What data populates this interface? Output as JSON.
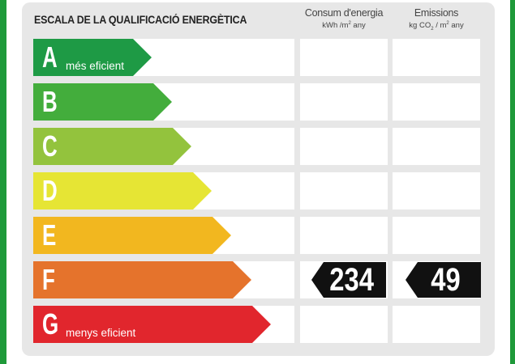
{
  "title": "ESCALA DE LA QUALIFICACIÓ ENERGÈTICA",
  "columns": {
    "consum": {
      "label": "Consum d'energia",
      "unit_base": "kWh /m",
      "unit_exp": "2",
      "unit_tail": "  any"
    },
    "emissions": {
      "label": "Emissions",
      "unit_a": "kg CO",
      "unit_sub": "2",
      "unit_b": " / m",
      "unit_exp": "2",
      "unit_tail": "  any"
    }
  },
  "classes": [
    {
      "letter": "A",
      "label": "més eficient",
      "color": "#1e9a45"
    },
    {
      "letter": "B",
      "label": "",
      "color": "#43ad3c"
    },
    {
      "letter": "C",
      "label": "",
      "color": "#93c33d"
    },
    {
      "letter": "D",
      "label": "",
      "color": "#e6e534"
    },
    {
      "letter": "E",
      "label": "",
      "color": "#f2b71f"
    },
    {
      "letter": "F",
      "label": "",
      "color": "#e5732c"
    },
    {
      "letter": "G",
      "label": "menys eficient",
      "color": "#e1262d"
    }
  ],
  "rating": {
    "class": "F",
    "consum_value": "234",
    "emissions_value": "49"
  }
}
